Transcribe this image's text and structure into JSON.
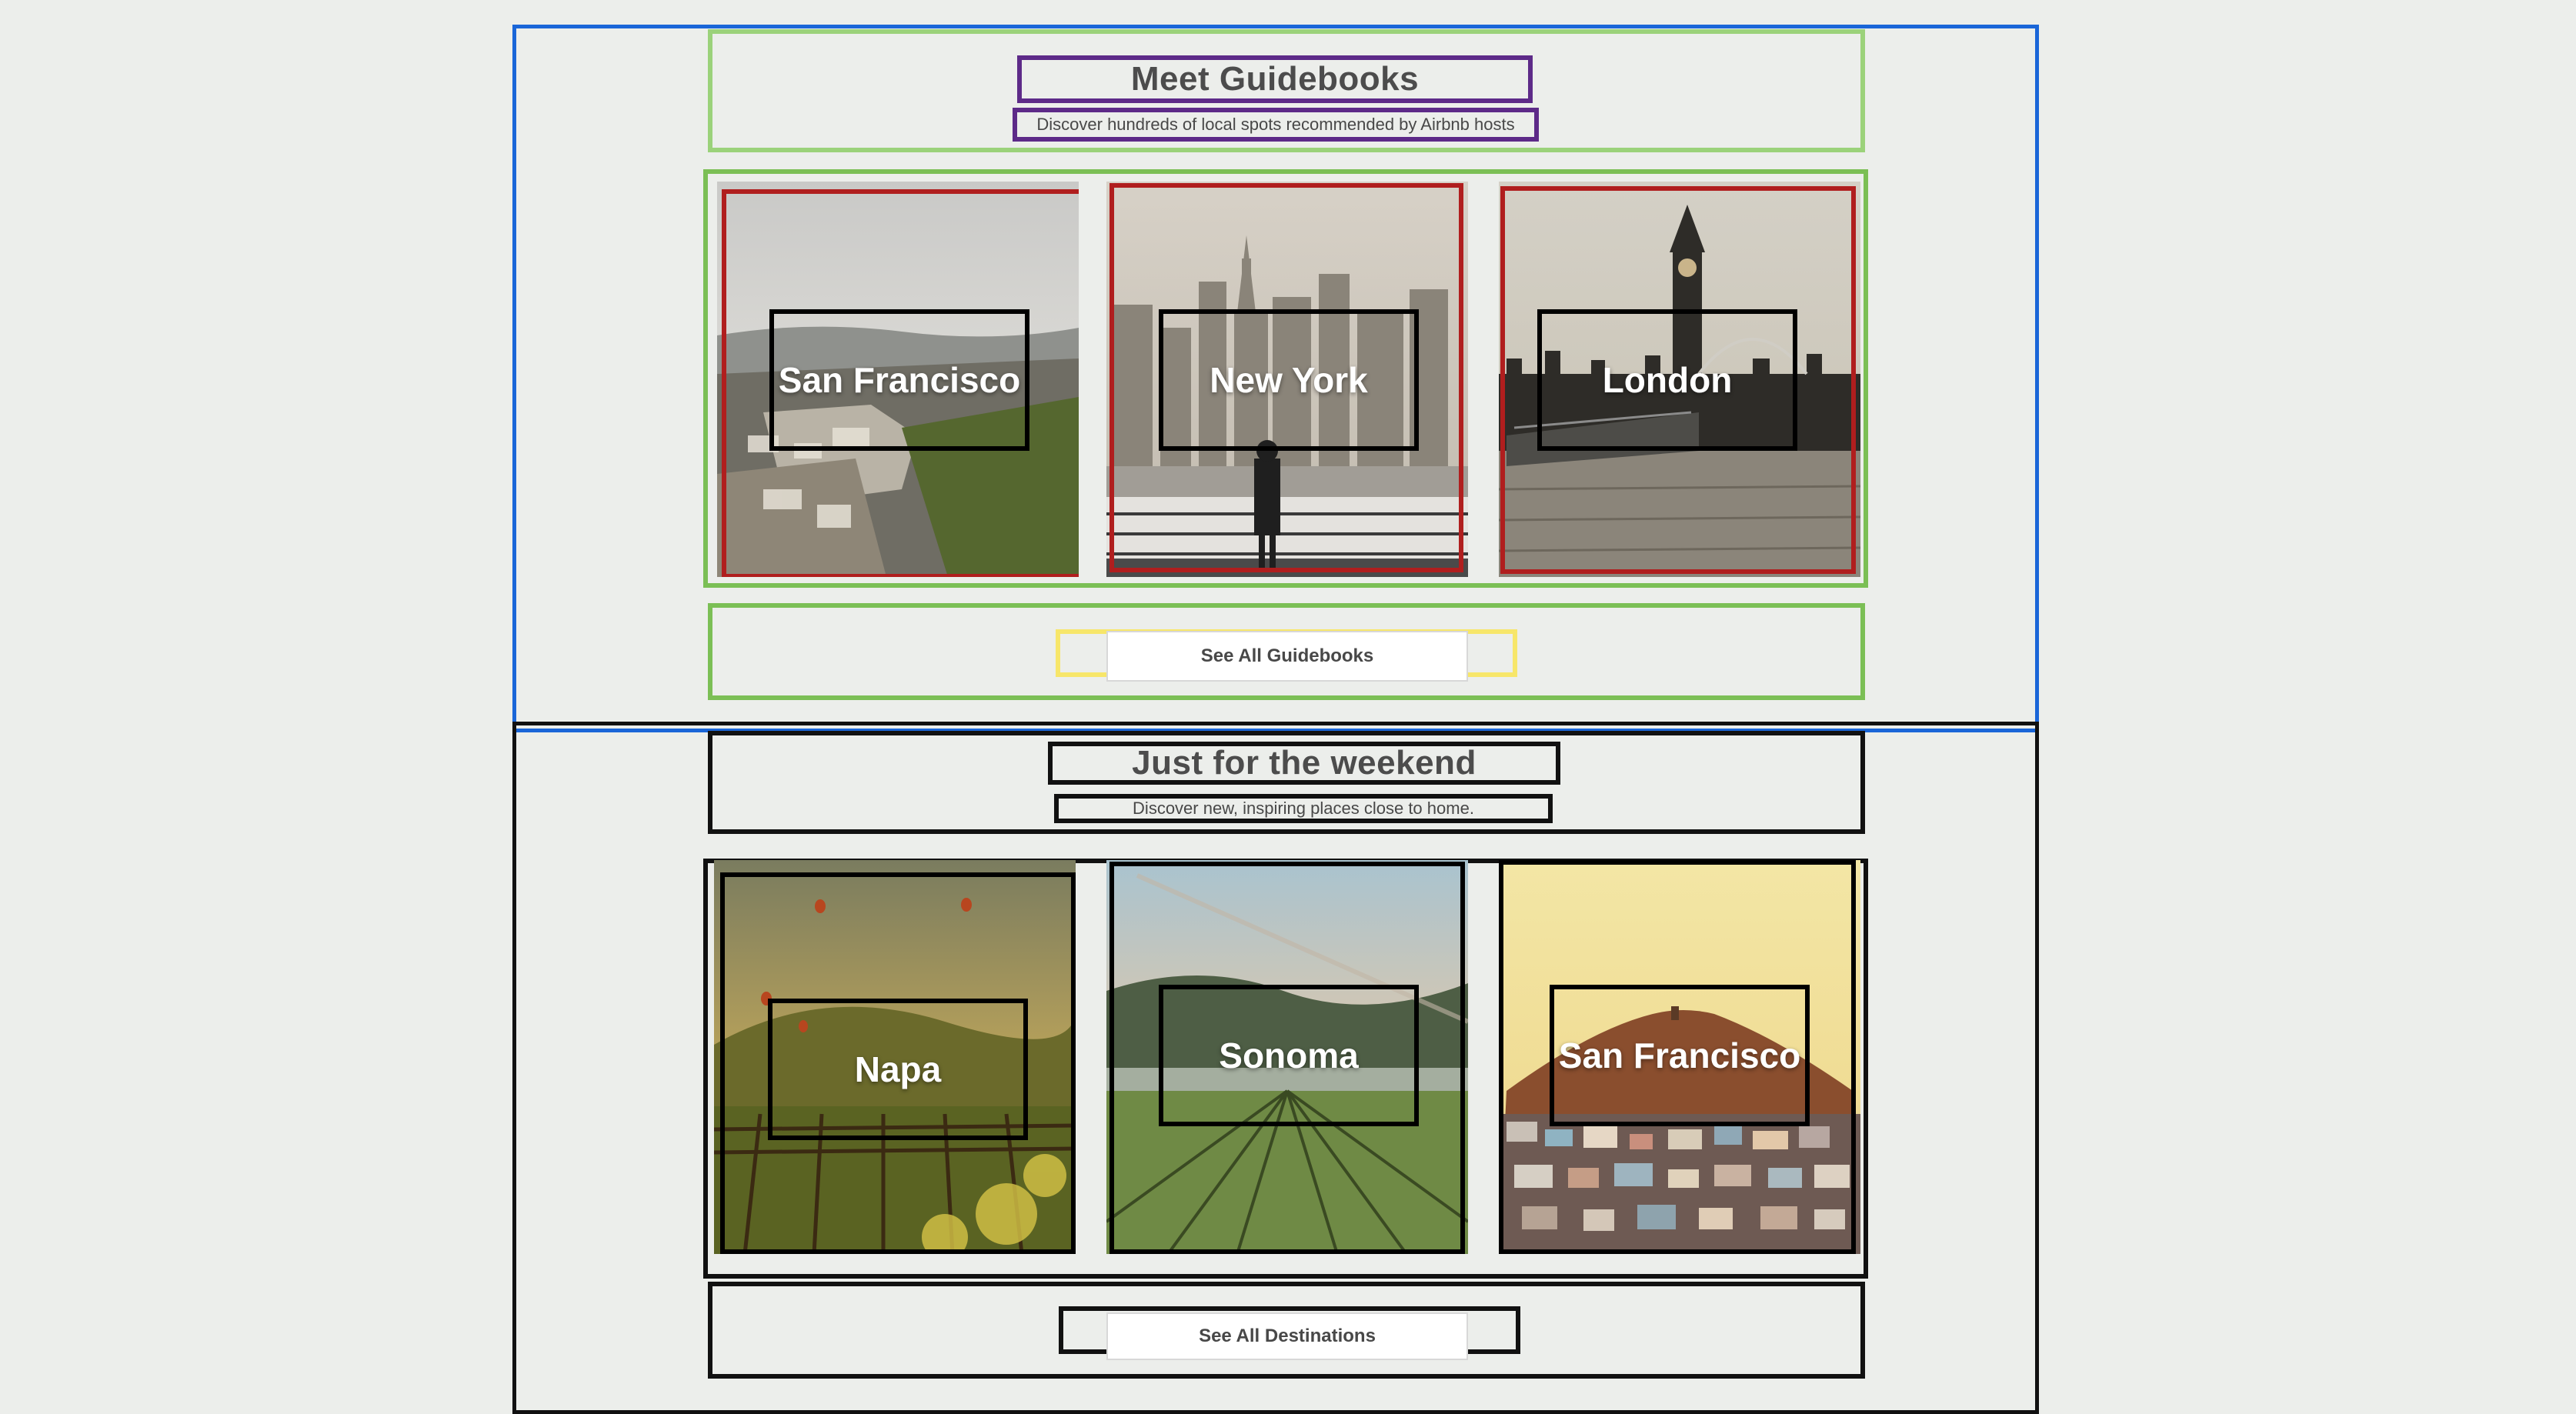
{
  "guidebooks": {
    "title": "Meet Guidebooks",
    "subtitle": "Discover hundreds of local spots recommended by Airbnb hosts",
    "cards": [
      {
        "label": "San Francisco"
      },
      {
        "label": "New York"
      },
      {
        "label": "London"
      }
    ],
    "button_label": "See All Guidebooks"
  },
  "weekend": {
    "title": "Just for the weekend",
    "subtitle": "Discover new, inspiring places close to home.",
    "cards": [
      {
        "label": "Napa"
      },
      {
        "label": "Sonoma"
      },
      {
        "label": "San Francisco"
      }
    ],
    "button_label": "See All Destinations"
  },
  "colors": {
    "background": "#eceeeb",
    "guides_section_outline": "#1a66d8",
    "header_outline": "#9bd27a",
    "title_outline": "#5d2a88",
    "group_outline": "#7bbf55",
    "card_outline": "#b01e1e",
    "button_outline": "#f7e66a",
    "text": "#484848"
  }
}
